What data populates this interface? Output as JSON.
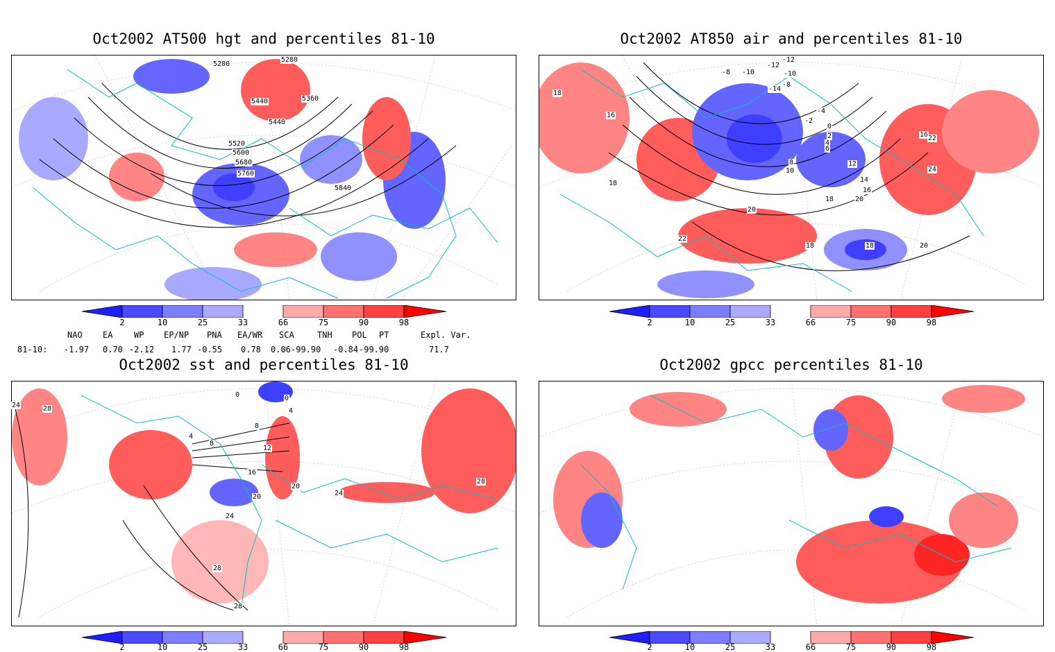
{
  "panels": [
    {
      "title": "Oct2002 AT500 hgt and percentiles 81-10",
      "contour_labels": [
        "5280",
        "5280",
        "5360",
        "5440",
        "5440",
        "5520",
        "5600",
        "5680",
        "5760",
        "5840"
      ]
    },
    {
      "title": "Oct2002 AT850 air and percentiles 81-10",
      "contour_labels": [
        "-12",
        "-8",
        "-10",
        "-12",
        "-10",
        "-8",
        "-14",
        "-4",
        "-2",
        "0",
        "2",
        "4",
        "6",
        "8",
        "10",
        "12",
        "14",
        "16",
        "18",
        "20",
        "22",
        "24",
        "16",
        "18",
        "16",
        "18",
        "20",
        "22",
        "18",
        "18",
        "20"
      ]
    },
    {
      "title": "Oct2002 sst and percentiles 81-10",
      "contour_labels": [
        "24",
        "28",
        "0",
        "0",
        "4",
        "4",
        "8",
        "8",
        "12",
        "16",
        "20",
        "20",
        "24",
        "24",
        "28",
        "28",
        "28"
      ]
    },
    {
      "title": "Oct2002 gpcc percentiles 81-10",
      "contour_labels": []
    }
  ],
  "colorbar": {
    "labels": [
      "2",
      "10",
      "25",
      "33",
      "66",
      "75",
      "90",
      "98"
    ],
    "colors": [
      "#1e1eff",
      "#4a4aff",
      "#7d7dff",
      "#aaaaff",
      "#ffaaaa",
      "#ff7070",
      "#ff4040",
      "#ff0000"
    ]
  },
  "indices": {
    "names": [
      "NAO",
      "EA",
      "WP",
      "EP/NP",
      "PNA",
      "EA/WR",
      "SCA",
      "TNH",
      "POL",
      "PT",
      "Expl. Var."
    ],
    "row_label": "81-10:",
    "values": [
      "-1.97",
      "0.70",
      "-2.12",
      "1.77",
      "-0.55",
      "0.78",
      "0.06",
      "-99.90",
      "-0.84",
      "-99.90",
      "71.7"
    ]
  }
}
